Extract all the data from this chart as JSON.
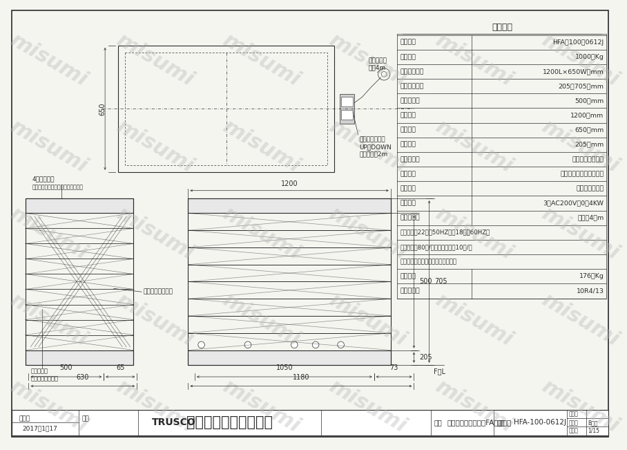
{
  "paper_color": "#f5f5f0",
  "line_color": "#2a2a2a",
  "thin_line": 0.5,
  "medium_line": 0.8,
  "thick_line": 1.2,
  "spec_title": "仕　　樹",
  "spec_rows": [
    [
      "型　　式",
      "HFA－100－0612J"
    ],
    [
      "均等荷重",
      "1000　Kg"
    ],
    [
      "テーブル寸法",
      "1200L×650W　mm"
    ],
    [
      "テーブル高サ",
      "205～705　mm"
    ],
    [
      "ストローク",
      "500　mm"
    ],
    [
      "全　　長",
      "1200　mm"
    ],
    [
      "全　　幅",
      "650　mm"
    ],
    [
      "全　　高",
      "205　mm"
    ],
    [
      "リフト方式",
      "電動ボールネジ式"
    ],
    [
      "制御方式",
      "マグネットスイッチ制御"
    ],
    [
      "操作方式",
      "フットスイッチ"
    ],
    [
      "モーター",
      "3相AC200V、0．4KW"
    ],
    [
      "電源コード",
      "長サ　4　m"
    ],
    [
      "昇降時間　22秒（50HZ）　18秒（60HZ）",
      ""
    ],
    [
      "最大使用頹80回/時間・最大起動10回/分",
      ""
    ],
    [
      "上昇端、下降端リミットスイッチ付",
      ""
    ],
    [
      "自　　重",
      "176　Kg"
    ],
    [
      "塗　装　色",
      "10R4/13"
    ]
  ],
  "title_bar": {
    "created": "作成日",
    "date": "2017．1．17",
    "check": "検図",
    "company_trusco": "TRUSCO",
    "company_jp": "トラスコ中山株式会社",
    "hinmei_label": "品名",
    "hinmei": "ジャバラ付スーパーFAリフター",
    "hiban_label": "品番",
    "hiban": "HFA-100-0612J"
  },
  "title_box": {
    "zuhyo": "図　番",
    "yoshi": "用　紙",
    "yoshi_val": "B－４",
    "shukusha": "縮　尺",
    "shukusha_val": "1/15"
  },
  "labels": {
    "jabara": "4面ジャバラ",
    "coating": "ポリエステル地に難燃コーティング",
    "gear_motor": "ギャードモーター",
    "limit_sw": "上限・下限\nリミットスイッチ",
    "power_cord": "電源コード\n長サ4m",
    "foot_sw": "フットスイッチ\nUP・DOWN\nコード長サ2m",
    "fl": "F．L"
  },
  "dims": {
    "d650": "650",
    "d1200_top": "1200",
    "d500": "500",
    "d705": "705",
    "d205": "205",
    "d1050": "1050",
    "d73": "73",
    "d1180": "1180",
    "d500_left": "500",
    "d65": "65",
    "d630": "630"
  }
}
